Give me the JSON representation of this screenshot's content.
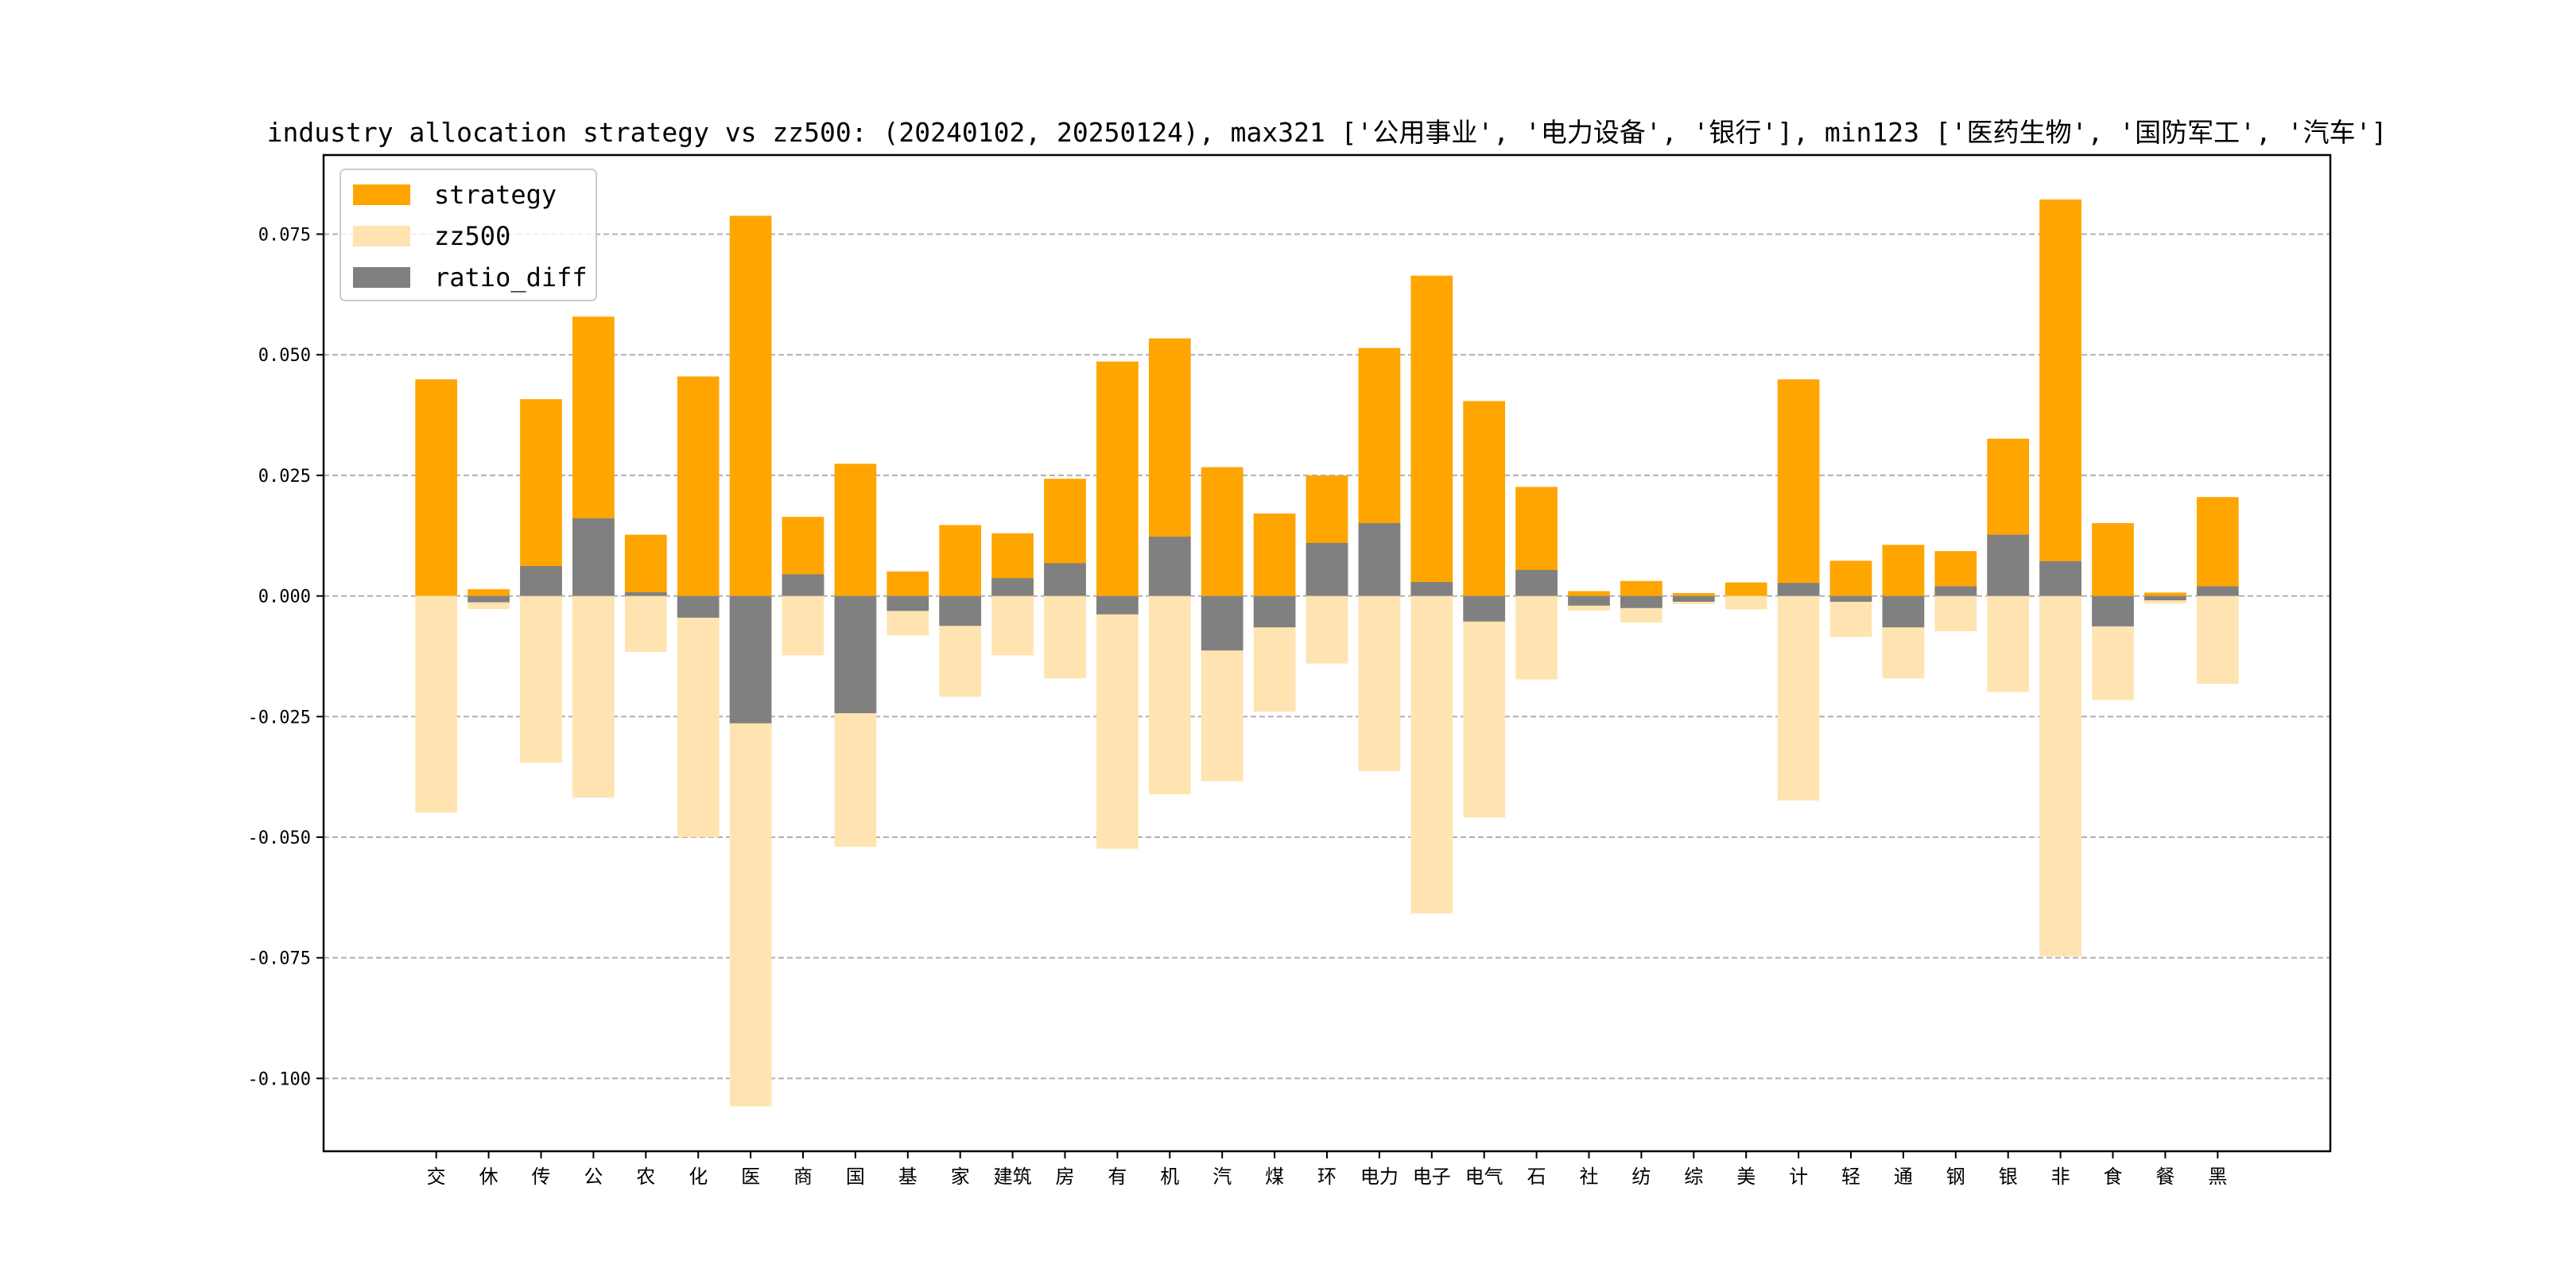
{
  "chart_data": {
    "type": "bar",
    "title": "industry allocation strategy vs zz500: (20240102, 20250124), max321 ['公用事业', '电力设备', '银行'], min123 ['医药生物', '国防军工', '汽车']",
    "xlabel": "",
    "ylabel": "",
    "ylim": [
      -0.1151,
      0.0914
    ],
    "yticks": [
      -0.1,
      -0.075,
      -0.05,
      -0.025,
      0.0,
      0.025,
      0.05,
      0.075
    ],
    "ytick_labels": [
      "-0.100",
      "-0.075",
      "-0.050",
      "-0.025",
      "0.000",
      "0.025",
      "0.050",
      "0.075"
    ],
    "grid": "y dashed",
    "legend_position": "top-left",
    "categories": [
      "交",
      "休",
      "传",
      "公",
      "农",
      "化",
      "医",
      "商",
      "国",
      "基",
      "家",
      "建筑",
      "房",
      "有",
      "机",
      "汽",
      "煤",
      "环",
      "电力",
      "电子",
      "电气",
      "石",
      "社",
      "纺",
      "综",
      "美",
      "计",
      "轻",
      "通",
      "钢",
      "银",
      "非",
      "食",
      "餐",
      "黑"
    ],
    "series": [
      {
        "name": "strategy",
        "color": "#FFA500",
        "values": [
          0.0449,
          0.0014,
          0.0408,
          0.0579,
          0.0127,
          0.0455,
          0.0788,
          0.0164,
          0.0274,
          0.0051,
          0.0147,
          0.013,
          0.0243,
          0.0486,
          0.0534,
          0.0267,
          0.0171,
          0.025,
          0.0514,
          0.0664,
          0.0404,
          0.0226,
          0.001,
          0.0031,
          0.0006,
          0.0028,
          0.0449,
          0.0073,
          0.0106,
          0.0093,
          0.0326,
          0.0822,
          0.0151,
          0.0007,
          0.0205
        ]
      },
      {
        "name": "zz500",
        "color": "#FFE4B2",
        "values": [
          -0.0449,
          -0.0027,
          -0.0346,
          -0.0418,
          -0.0116,
          -0.05,
          -0.1058,
          -0.0123,
          -0.052,
          -0.0082,
          -0.0209,
          -0.0123,
          -0.0171,
          -0.0524,
          -0.0411,
          -0.0384,
          -0.024,
          -0.014,
          -0.0363,
          -0.0658,
          -0.0459,
          -0.0173,
          -0.003,
          -0.0055,
          -0.0017,
          -0.0028,
          -0.0424,
          -0.0085,
          -0.0171,
          -0.0073,
          -0.0199,
          -0.0747,
          -0.0216,
          -0.0016,
          -0.0182
        ]
      },
      {
        "name": "ratio_diff",
        "color": "#808080",
        "values": [
          0.0,
          -0.0013,
          0.0062,
          0.0161,
          0.0008,
          -0.0045,
          -0.0264,
          0.0045,
          -0.0243,
          -0.0031,
          -0.0062,
          0.0037,
          0.0068,
          -0.0038,
          0.0123,
          -0.0113,
          -0.0065,
          0.011,
          0.0151,
          0.0029,
          -0.0053,
          0.0054,
          -0.002,
          -0.0025,
          -0.0012,
          0.0,
          0.0027,
          -0.0012,
          -0.0065,
          0.002,
          0.0127,
          0.0072,
          -0.0063,
          -0.0009,
          0.002
        ]
      }
    ]
  }
}
